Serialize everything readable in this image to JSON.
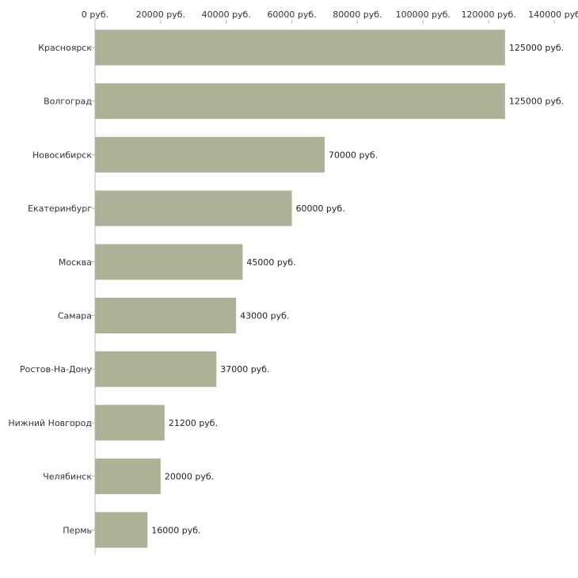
{
  "chart_data": {
    "type": "bar",
    "orientation": "horizontal",
    "title": "",
    "xlabel": "",
    "ylabel": "",
    "xlim": [
      0,
      140000
    ],
    "grid": false,
    "x_ticks": [
      0,
      20000,
      40000,
      60000,
      80000,
      100000,
      120000,
      140000
    ],
    "x_tick_labels": [
      "0 руб.",
      "20000 руб.",
      "40000 руб.",
      "60000 руб.",
      "80000 руб.",
      "100000 руб.",
      "120000 руб.",
      "140000 руб"
    ],
    "categories": [
      "Красноярск",
      "Волгоград",
      "Новосибирск",
      "Екатеринбург",
      "Москва",
      "Самара",
      "Ростов-На-Дону",
      "Нижний Новгород",
      "Челябинск",
      "Пермь"
    ],
    "values": [
      125000,
      125000,
      70000,
      60000,
      45000,
      43000,
      37000,
      21200,
      20000,
      16000
    ],
    "value_labels": [
      "125000 руб.",
      "125000 руб.",
      "70000 руб.",
      "60000 руб.",
      "45000 руб.",
      "43000 руб.",
      "37000 руб.",
      "21200 руб.",
      "20000 руб.",
      "16000 руб."
    ],
    "bar_color": "#acb298"
  }
}
